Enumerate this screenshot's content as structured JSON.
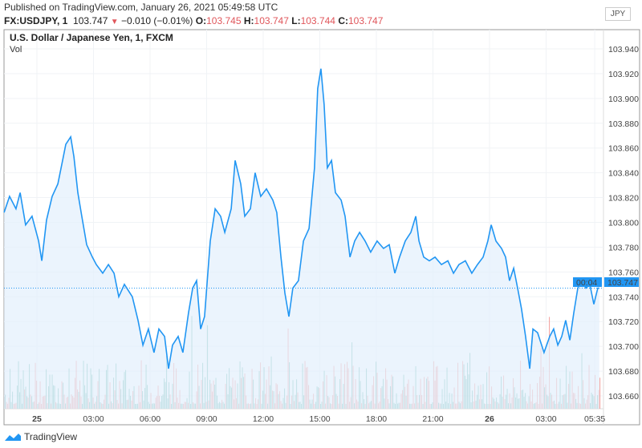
{
  "header": {
    "published": "Published on TradingView.com, January 26, 2021 05:49:58 UTC",
    "symbol": "FX:USDJPY, 1",
    "last": "103.747",
    "change": "−0.010 (−0.01%)",
    "o_label": "O:",
    "o": "103.745",
    "h_label": "H:",
    "h": "103.747",
    "l_label": "L:",
    "l": "103.744",
    "c_label": "C:",
    "c": "103.747"
  },
  "chart": {
    "title": "U.S. Dollar / Japanese Yen, 1, FXCM",
    "volume_label": "Vol",
    "currency": "JPY",
    "current_price_label": "103.747",
    "countdown": "00:04"
  },
  "footer": {
    "brand": "TradingView"
  },
  "colors": {
    "line": "#2196f3",
    "fill": "#e3f0fc",
    "up": "#5fb3a5",
    "down": "#ef8a86",
    "label_bg": "#2196f3"
  },
  "chart_data": {
    "type": "line",
    "title": "U.S. Dollar / Japanese Yen, 1, FXCM",
    "x_unit": "hours since Jan 25 00:00 UTC",
    "ylim": [
      103.65,
      103.95
    ],
    "xlim": [
      -1.75,
      30.0
    ],
    "yticks": [
      "103.660",
      "103.680",
      "103.700",
      "103.720",
      "103.740",
      "103.760",
      "103.780",
      "103.800",
      "103.820",
      "103.840",
      "103.860",
      "103.880",
      "103.900",
      "103.920",
      "103.940"
    ],
    "xticks": [
      {
        "h": 0,
        "label": "25"
      },
      {
        "h": 3,
        "label": "03:00"
      },
      {
        "h": 6,
        "label": "06:00"
      },
      {
        "h": 9,
        "label": "09:00"
      },
      {
        "h": 12,
        "label": "12:00"
      },
      {
        "h": 15,
        "label": "15:00"
      },
      {
        "h": 18,
        "label": "18:00"
      },
      {
        "h": 21,
        "label": "21:00"
      },
      {
        "h": 24,
        "label": "26"
      },
      {
        "h": 27,
        "label": "03:00"
      },
      {
        "h": 29.58,
        "label": "05:35"
      }
    ],
    "series": [
      {
        "name": "USDJPY",
        "points": [
          [
            -1.74,
            103.808
          ],
          [
            -1.45,
            103.821
          ],
          [
            -1.11,
            103.811
          ],
          [
            -0.89,
            103.824
          ],
          [
            -0.6,
            103.798
          ],
          [
            -0.26,
            103.805
          ],
          [
            0.09,
            103.785
          ],
          [
            0.26,
            103.769
          ],
          [
            0.51,
            103.802
          ],
          [
            0.81,
            103.821
          ],
          [
            1.11,
            103.831
          ],
          [
            1.36,
            103.85
          ],
          [
            1.53,
            103.863
          ],
          [
            1.79,
            103.869
          ],
          [
            1.96,
            103.853
          ],
          [
            2.17,
            103.824
          ],
          [
            2.38,
            103.805
          ],
          [
            2.64,
            103.782
          ],
          [
            2.94,
            103.772
          ],
          [
            3.15,
            103.766
          ],
          [
            3.49,
            103.759
          ],
          [
            3.79,
            103.766
          ],
          [
            4.09,
            103.759
          ],
          [
            4.34,
            103.74
          ],
          [
            4.64,
            103.75
          ],
          [
            5.06,
            103.74
          ],
          [
            5.36,
            103.721
          ],
          [
            5.62,
            103.701
          ],
          [
            5.91,
            103.714
          ],
          [
            6.21,
            103.695
          ],
          [
            6.47,
            103.714
          ],
          [
            6.77,
            103.708
          ],
          [
            6.98,
            103.682
          ],
          [
            7.19,
            103.701
          ],
          [
            7.49,
            103.708
          ],
          [
            7.74,
            103.695
          ],
          [
            8.04,
            103.727
          ],
          [
            8.26,
            103.747
          ],
          [
            8.47,
            103.753
          ],
          [
            8.68,
            103.714
          ],
          [
            8.89,
            103.724
          ],
          [
            9.19,
            103.785
          ],
          [
            9.45,
            103.811
          ],
          [
            9.74,
            103.805
          ],
          [
            9.96,
            103.792
          ],
          [
            10.3,
            103.811
          ],
          [
            10.51,
            103.85
          ],
          [
            10.81,
            103.831
          ],
          [
            11.02,
            103.805
          ],
          [
            11.32,
            103.811
          ],
          [
            11.57,
            103.84
          ],
          [
            11.87,
            103.821
          ],
          [
            12.17,
            103.827
          ],
          [
            12.51,
            103.818
          ],
          [
            12.72,
            103.808
          ],
          [
            12.94,
            103.772
          ],
          [
            13.15,
            103.743
          ],
          [
            13.36,
            103.724
          ],
          [
            13.57,
            103.747
          ],
          [
            13.87,
            103.753
          ],
          [
            14.13,
            103.785
          ],
          [
            14.43,
            103.795
          ],
          [
            14.72,
            103.844
          ],
          [
            14.89,
            103.908
          ],
          [
            15.06,
            103.924
          ],
          [
            15.23,
            103.895
          ],
          [
            15.4,
            103.844
          ],
          [
            15.62,
            103.85
          ],
          [
            15.83,
            103.824
          ],
          [
            16.13,
            103.818
          ],
          [
            16.34,
            103.805
          ],
          [
            16.6,
            103.772
          ],
          [
            16.85,
            103.785
          ],
          [
            17.11,
            103.792
          ],
          [
            17.4,
            103.785
          ],
          [
            17.7,
            103.776
          ],
          [
            18.04,
            103.785
          ],
          [
            18.38,
            103.779
          ],
          [
            18.68,
            103.782
          ],
          [
            18.98,
            103.759
          ],
          [
            19.23,
            103.772
          ],
          [
            19.53,
            103.785
          ],
          [
            19.83,
            103.792
          ],
          [
            20.09,
            103.805
          ],
          [
            20.26,
            103.785
          ],
          [
            20.51,
            103.772
          ],
          [
            20.81,
            103.769
          ],
          [
            21.11,
            103.772
          ],
          [
            21.45,
            103.766
          ],
          [
            21.79,
            103.769
          ],
          [
            22.09,
            103.759
          ],
          [
            22.38,
            103.766
          ],
          [
            22.72,
            103.769
          ],
          [
            23.06,
            103.759
          ],
          [
            23.36,
            103.766
          ],
          [
            23.66,
            103.772
          ],
          [
            23.91,
            103.785
          ],
          [
            24.09,
            103.798
          ],
          [
            24.34,
            103.785
          ],
          [
            24.64,
            103.779
          ],
          [
            24.85,
            103.772
          ],
          [
            25.06,
            103.753
          ],
          [
            25.28,
            103.763
          ],
          [
            25.49,
            103.747
          ],
          [
            25.7,
            103.73
          ],
          [
            25.91,
            103.708
          ],
          [
            26.13,
            103.682
          ],
          [
            26.3,
            103.714
          ],
          [
            26.55,
            103.711
          ],
          [
            26.89,
            103.695
          ],
          [
            27.19,
            103.708
          ],
          [
            27.4,
            103.714
          ],
          [
            27.62,
            103.701
          ],
          [
            27.83,
            103.708
          ],
          [
            28.04,
            103.721
          ],
          [
            28.26,
            103.705
          ],
          [
            28.47,
            103.727
          ],
          [
            28.68,
            103.747
          ],
          [
            28.89,
            103.753
          ],
          [
            29.11,
            103.747
          ],
          [
            29.32,
            103.75
          ],
          [
            29.53,
            103.734
          ],
          [
            29.74,
            103.747
          ],
          [
            29.82,
            103.747
          ]
        ]
      }
    ],
    "current_value": 103.747
  }
}
